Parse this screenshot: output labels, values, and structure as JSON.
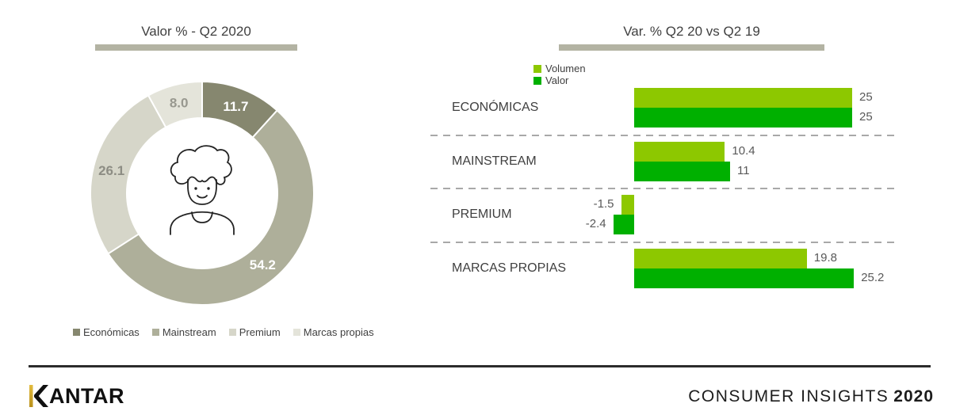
{
  "page": {
    "background": "#ffffff"
  },
  "chart_data": [
    {
      "type": "pie",
      "variant": "donut",
      "title": "Valor % - Q2 2020",
      "title_underline_color": "#B3B3A3",
      "legend_position": "bottom",
      "start_angle_deg": 0,
      "clockwise": true,
      "center_icon": "person-avatar",
      "segments": [
        {
          "label": "Económicas",
          "value": 11.7,
          "display": "11.7",
          "color": "#86876F",
          "label_color": "#FFFFFF"
        },
        {
          "label": "Mainstream",
          "value": 54.2,
          "display": "54.2",
          "color": "#AEAF9A",
          "label_color": "#FFFFFF"
        },
        {
          "label": "Premium",
          "value": 26.1,
          "display": "26.1",
          "color": "#D6D6C9",
          "label_color": "#8D8D84"
        },
        {
          "label": "Marcas propias",
          "value": 8.0,
          "display": "8.0",
          "color": "#E4E4DA",
          "label_color": "#98988F"
        }
      ]
    },
    {
      "type": "bar",
      "orientation": "horizontal",
      "title": "Var. % Q2 20 vs Q2 19",
      "title_underline_color": "#B3B3A3",
      "categories": [
        "ECONÓMICAS",
        "MAINSTREAM",
        "PREMIUM",
        "MARCAS PROPIAS"
      ],
      "series": [
        {
          "name": "Volumen",
          "color": "#8DC800",
          "values": [
            25,
            10.4,
            -1.5,
            19.8
          ],
          "labels": [
            "25",
            "10.4",
            "-1.5",
            "19.8"
          ]
        },
        {
          "name": "Valor",
          "color": "#00B000",
          "values": [
            25,
            11,
            -2.4,
            25.2
          ],
          "labels": [
            "25",
            "11",
            "-2.4",
            "25.2"
          ]
        }
      ],
      "value_label_color": "#595959",
      "separator_style": "dashed",
      "axis_zero_x": 0,
      "xlim": [
        -3,
        26
      ]
    }
  ],
  "footer": {
    "brand": "KANTAR",
    "brand_rest": "ANTAR",
    "brand_mark_color": "#C99F1E",
    "right_text": "CONSUMER INSIGHTS",
    "right_year": "2020"
  }
}
